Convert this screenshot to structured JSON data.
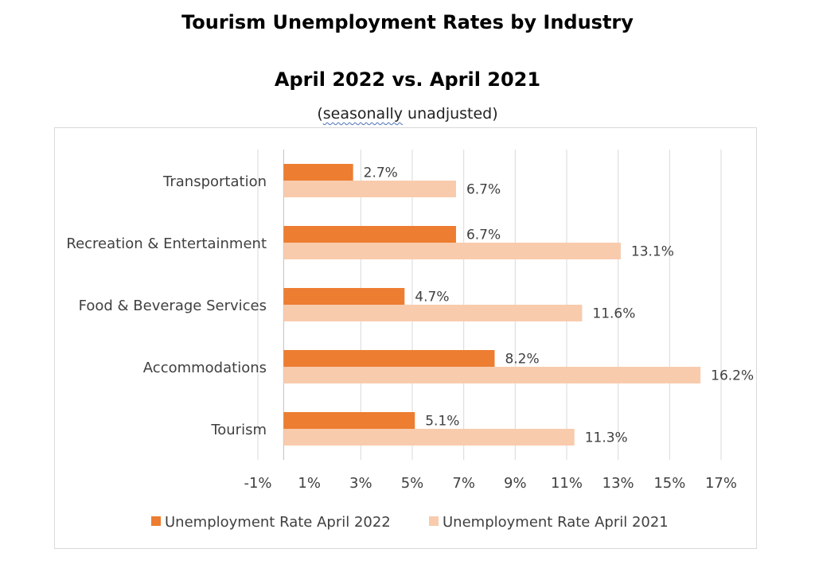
{
  "header": {
    "title": "Tourism Unemployment Rates by Industry",
    "subtitle": "April 2022 vs. April 2021",
    "note_open": "(",
    "note_squiggle": "seasonally",
    "note_rest": " unadjusted)"
  },
  "colors": {
    "series_2022": "#ED7D31",
    "series_2021": "#F8CBAD",
    "grid": "#d9d9d9",
    "text": "#404040"
  },
  "chart_data": {
    "type": "bar",
    "orientation": "horizontal",
    "categories": [
      "Transportation",
      "Recreation & Entertainment",
      "Food & Beverage Services",
      "Accommodations",
      "Tourism"
    ],
    "series": [
      {
        "name": "Unemployment Rate April 2022",
        "values": [
          2.7,
          6.7,
          4.7,
          8.2,
          5.1
        ],
        "labels": [
          "2.7%",
          "6.7%",
          "4.7%",
          "8.2%",
          "5.1%"
        ]
      },
      {
        "name": "Unemployment Rate April 2021",
        "values": [
          6.7,
          13.1,
          11.6,
          16.2,
          11.3
        ],
        "labels": [
          "6.7%",
          "13.1%",
          "11.6%",
          "16.2%",
          "11.3%"
        ]
      }
    ],
    "x_ticks": [
      -1,
      1,
      3,
      5,
      7,
      9,
      11,
      13,
      15,
      17
    ],
    "x_tick_labels": [
      "-1%",
      "1%",
      "3%",
      "5%",
      "7%",
      "9%",
      "11%",
      "13%",
      "15%",
      "17%"
    ],
    "xlim": [
      -1,
      17
    ],
    "grid": true,
    "legend_position": "bottom"
  }
}
